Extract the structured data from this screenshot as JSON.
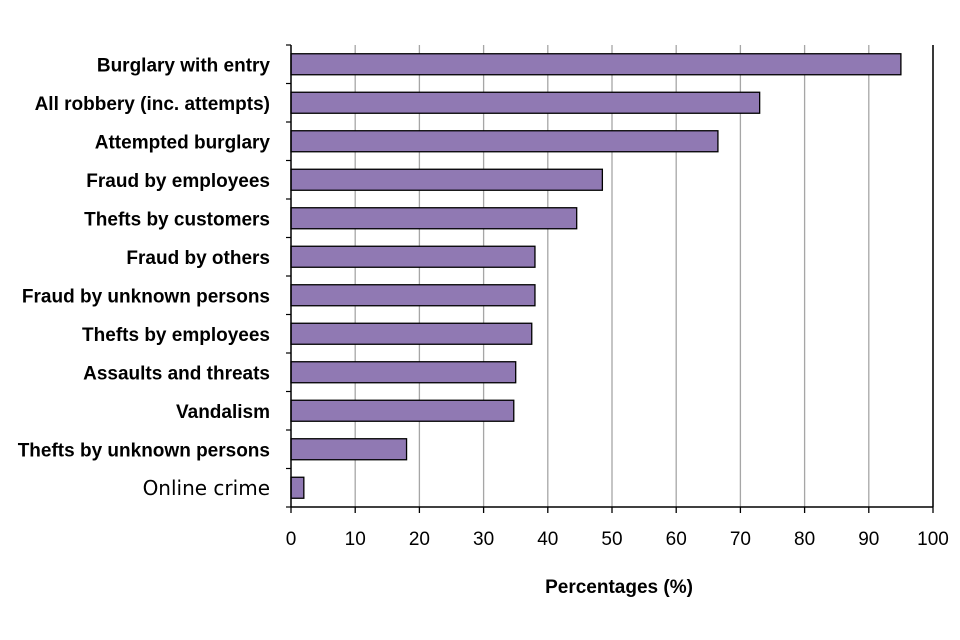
{
  "chart_data": {
    "type": "bar",
    "orientation": "horizontal",
    "categories": [
      "Burglary with entry",
      "All robbery (inc. attempts)",
      "Attempted burglary",
      "Fraud by employees",
      "Thefts by customers",
      "Fraud by others",
      "Fraud by unknown persons",
      "Thefts by employees",
      "Assaults and threats",
      "Vandalism",
      "Thefts by unknown persons",
      "Online crime"
    ],
    "values": [
      95,
      73,
      66.5,
      48.5,
      44.5,
      38,
      38,
      37.5,
      35,
      34.7,
      18,
      2
    ],
    "xlabel": "Percentages (%)",
    "ylabel": "",
    "title": "",
    "xlim": [
      0,
      100
    ],
    "x_ticks": [
      "0",
      "10",
      "20",
      "30",
      "40",
      "50",
      "60",
      "70",
      "80",
      "90",
      "100"
    ],
    "grid": "vertical",
    "legend": "none",
    "bar_color": "#9079b3",
    "bar_edge_color": "#000000",
    "grid_color": "#a6a6a6"
  }
}
